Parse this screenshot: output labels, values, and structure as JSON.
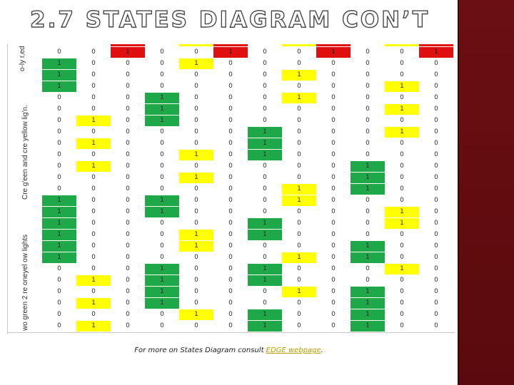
{
  "slide": {
    "title": "2.7 STATES DIAGRAM CON’T"
  },
  "row_labels": {
    "group1": "o-ly r,ed ltom(s(",
    "group2": "Cre g'een and cre yellow lig'n.",
    "group3": "wo green 2 re oneyel ow lights"
  },
  "table": {
    "header_colors": [
      "none",
      "none",
      "red",
      "none",
      "yellow",
      "red",
      "none",
      "yellow",
      "red",
      "none",
      "yellow",
      "red"
    ],
    "rows": [
      {
        "values": [
          "0",
          "0",
          "1",
          "0",
          "0",
          "1",
          "0",
          "0",
          "1",
          "0",
          "0",
          "1"
        ],
        "colors": [
          "none",
          "none",
          "red",
          "none",
          "none",
          "red",
          "none",
          "none",
          "red",
          "none",
          "none",
          "red"
        ]
      },
      {
        "values": [
          "1",
          "0",
          "0",
          "0",
          "1",
          "0",
          "0",
          "0",
          "0",
          "0",
          "0",
          "0"
        ],
        "colors": [
          "green",
          "none",
          "none",
          "none",
          "yellow",
          "none",
          "none",
          "none",
          "none",
          "none",
          "none",
          "none"
        ]
      },
      {
        "values": [
          "1",
          "0",
          "0",
          "0",
          "0",
          "0",
          "0",
          "1",
          "0",
          "0",
          "0",
          "0"
        ],
        "colors": [
          "green",
          "none",
          "none",
          "none",
          "none",
          "none",
          "none",
          "yellow",
          "none",
          "none",
          "none",
          "none"
        ]
      },
      {
        "values": [
          "1",
          "0",
          "0",
          "0",
          "0",
          "0",
          "0",
          "0",
          "0",
          "0",
          "1",
          "0"
        ],
        "colors": [
          "green",
          "none",
          "none",
          "none",
          "none",
          "none",
          "none",
          "none",
          "none",
          "none",
          "yellow",
          "none"
        ]
      },
      {
        "values": [
          "0",
          "0",
          "0",
          "1",
          "0",
          "0",
          "0",
          "1",
          "0",
          "0",
          "0",
          "0"
        ],
        "colors": [
          "none",
          "none",
          "none",
          "green",
          "none",
          "none",
          "none",
          "yellow",
          "none",
          "none",
          "none",
          "none"
        ]
      },
      {
        "values": [
          "0",
          "0",
          "0",
          "1",
          "0",
          "0",
          "0",
          "0",
          "0",
          "0",
          "1",
          "0"
        ],
        "colors": [
          "none",
          "none",
          "none",
          "green",
          "none",
          "none",
          "none",
          "none",
          "none",
          "none",
          "yellow",
          "none"
        ]
      },
      {
        "values": [
          "0",
          "1",
          "0",
          "1",
          "0",
          "0",
          "0",
          "0",
          "0",
          "0",
          "0",
          "0"
        ],
        "colors": [
          "none",
          "yellow",
          "none",
          "green",
          "none",
          "none",
          "none",
          "none",
          "none",
          "none",
          "none",
          "none"
        ]
      },
      {
        "values": [
          "0",
          "0",
          "0",
          "0",
          "0",
          "0",
          "1",
          "0",
          "0",
          "0",
          "1",
          "0"
        ],
        "colors": [
          "none",
          "none",
          "none",
          "none",
          "none",
          "none",
          "green",
          "none",
          "none",
          "none",
          "yellow",
          "none"
        ]
      },
      {
        "values": [
          "0",
          "1",
          "0",
          "0",
          "0",
          "0",
          "1",
          "0",
          "0",
          "0",
          "0",
          "0"
        ],
        "colors": [
          "none",
          "yellow",
          "none",
          "none",
          "none",
          "none",
          "green",
          "none",
          "none",
          "none",
          "none",
          "none"
        ]
      },
      {
        "values": [
          "0",
          "0",
          "0",
          "0",
          "1",
          "0",
          "1",
          "0",
          "0",
          "0",
          "0",
          "0"
        ],
        "colors": [
          "none",
          "none",
          "none",
          "none",
          "yellow",
          "none",
          "green",
          "none",
          "none",
          "none",
          "none",
          "none"
        ]
      },
      {
        "values": [
          "0",
          "1",
          "0",
          "0",
          "0",
          "0",
          "0",
          "0",
          "0",
          "1",
          "0",
          "0"
        ],
        "colors": [
          "none",
          "yellow",
          "none",
          "none",
          "none",
          "none",
          "none",
          "none",
          "none",
          "green",
          "none",
          "none"
        ]
      },
      {
        "values": [
          "0",
          "0",
          "0",
          "0",
          "1",
          "0",
          "0",
          "0",
          "0",
          "1",
          "0",
          "0"
        ],
        "colors": [
          "none",
          "none",
          "none",
          "none",
          "yellow",
          "none",
          "none",
          "none",
          "none",
          "green",
          "none",
          "none"
        ]
      },
      {
        "values": [
          "0",
          "0",
          "0",
          "0",
          "0",
          "0",
          "0",
          "1",
          "0",
          "1",
          "0",
          "0"
        ],
        "colors": [
          "none",
          "none",
          "none",
          "none",
          "none",
          "none",
          "none",
          "yellow",
          "none",
          "green",
          "none",
          "none"
        ]
      },
      {
        "values": [
          "1",
          "0",
          "0",
          "1",
          "0",
          "0",
          "0",
          "1",
          "0",
          "0",
          "0",
          "0"
        ],
        "colors": [
          "green",
          "none",
          "none",
          "green",
          "none",
          "none",
          "none",
          "yellow",
          "none",
          "none",
          "none",
          "none"
        ]
      },
      {
        "values": [
          "1",
          "0",
          "0",
          "1",
          "0",
          "0",
          "0",
          "0",
          "0",
          "0",
          "1",
          "0"
        ],
        "colors": [
          "green",
          "none",
          "none",
          "green",
          "none",
          "none",
          "none",
          "none",
          "none",
          "none",
          "yellow",
          "none"
        ]
      },
      {
        "values": [
          "1",
          "0",
          "0",
          "0",
          "0",
          "0",
          "1",
          "0",
          "0",
          "0",
          "1",
          "0"
        ],
        "colors": [
          "green",
          "none",
          "none",
          "none",
          "none",
          "none",
          "green",
          "none",
          "none",
          "none",
          "yellow",
          "none"
        ]
      },
      {
        "values": [
          "1",
          "0",
          "0",
          "0",
          "1",
          "0",
          "1",
          "0",
          "0",
          "0",
          "0",
          "0"
        ],
        "colors": [
          "green",
          "none",
          "none",
          "none",
          "yellow",
          "none",
          "green",
          "none",
          "none",
          "none",
          "none",
          "none"
        ]
      },
      {
        "values": [
          "1",
          "0",
          "0",
          "0",
          "1",
          "0",
          "0",
          "0",
          "0",
          "1",
          "0",
          "0"
        ],
        "colors": [
          "green",
          "none",
          "none",
          "none",
          "yellow",
          "none",
          "none",
          "none",
          "none",
          "green",
          "none",
          "none"
        ]
      },
      {
        "values": [
          "1",
          "0",
          "0",
          "0",
          "0",
          "0",
          "0",
          "1",
          "0",
          "1",
          "0",
          "0"
        ],
        "colors": [
          "green",
          "none",
          "none",
          "none",
          "none",
          "none",
          "none",
          "yellow",
          "none",
          "green",
          "none",
          "none"
        ]
      },
      {
        "values": [
          "0",
          "0",
          "0",
          "1",
          "0",
          "0",
          "1",
          "0",
          "0",
          "0",
          "1",
          "0"
        ],
        "colors": [
          "none",
          "none",
          "none",
          "green",
          "none",
          "none",
          "green",
          "none",
          "none",
          "none",
          "yellow",
          "none"
        ]
      },
      {
        "values": [
          "0",
          "1",
          "0",
          "1",
          "0",
          "0",
          "1",
          "0",
          "0",
          "0",
          "0",
          "0"
        ],
        "colors": [
          "none",
          "yellow",
          "none",
          "green",
          "none",
          "none",
          "green",
          "none",
          "none",
          "none",
          "none",
          "none"
        ]
      },
      {
        "values": [
          "0",
          "0",
          "0",
          "1",
          "0",
          "0",
          "0",
          "1",
          "0",
          "1",
          "0",
          "0"
        ],
        "colors": [
          "none",
          "none",
          "none",
          "green",
          "none",
          "none",
          "none",
          "yellow",
          "none",
          "green",
          "none",
          "none"
        ]
      },
      {
        "values": [
          "0",
          "1",
          "0",
          "1",
          "0",
          "0",
          "0",
          "0",
          "0",
          "1",
          "0",
          "0"
        ],
        "colors": [
          "none",
          "yellow",
          "none",
          "green",
          "none",
          "none",
          "none",
          "none",
          "none",
          "green",
          "none",
          "none"
        ]
      },
      {
        "values": [
          "0",
          "0",
          "0",
          "0",
          "1",
          "0",
          "1",
          "0",
          "0",
          "1",
          "0",
          "0"
        ],
        "colors": [
          "none",
          "none",
          "none",
          "none",
          "yellow",
          "none",
          "green",
          "none",
          "none",
          "green",
          "none",
          "none"
        ]
      },
      {
        "values": [
          "0",
          "1",
          "0",
          "0",
          "0",
          "0",
          "1",
          "0",
          "0",
          "1",
          "0",
          "0"
        ],
        "colors": [
          "none",
          "yellow",
          "none",
          "none",
          "none",
          "none",
          "green",
          "none",
          "none",
          "green",
          "none",
          "none"
        ]
      }
    ]
  },
  "footnote": {
    "prefix": "For more on States Diagram consult ",
    "link_text": "EDGE webpage",
    "suffix": "."
  },
  "colors": {
    "red": "#e01010",
    "yellow": "#ffff00",
    "green": "#1fa84a",
    "band": "#6b0f12"
  }
}
